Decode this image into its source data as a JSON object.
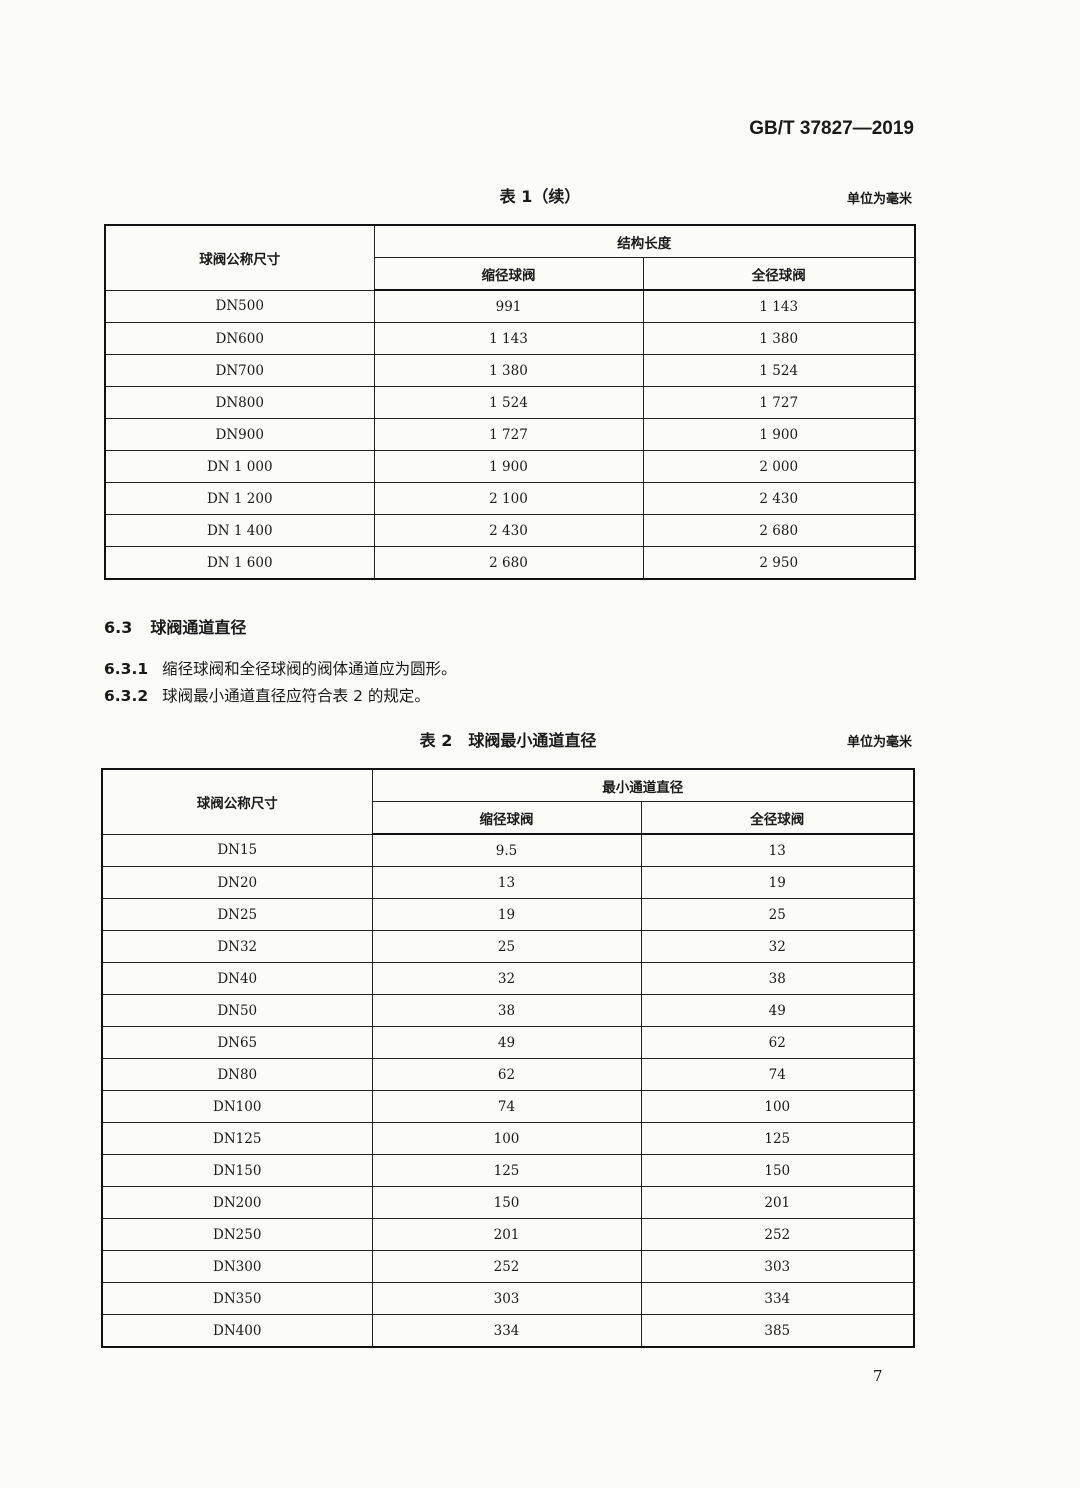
{
  "header": {
    "standard_number": "GB/T 37827—2019"
  },
  "table1": {
    "caption": "表 1（续）",
    "unit": "单位为毫米",
    "col_size": "球阀公称尺寸",
    "group_header": "结构长度",
    "col_reduced": "缩径球阀",
    "col_full": "全径球阀",
    "rows": [
      [
        "DN500",
        "991",
        "1 143"
      ],
      [
        "DN600",
        "1 143",
        "1 380"
      ],
      [
        "DN700",
        "1 380",
        "1 524"
      ],
      [
        "DN800",
        "1 524",
        "1 727"
      ],
      [
        "DN900",
        "1 727",
        "1 900"
      ],
      [
        "DN 1 000",
        "1 900",
        "2 000"
      ],
      [
        "DN 1 200",
        "2 100",
        "2 430"
      ],
      [
        "DN 1 400",
        "2 430",
        "2 680"
      ],
      [
        "DN 1 600",
        "2 680",
        "2 950"
      ]
    ]
  },
  "section": {
    "number": "6.3",
    "title": "球阀通道直径",
    "clauses": [
      {
        "number": "6.3.1",
        "text": "缩径球阀和全径球阀的阀体通道应为圆形。"
      },
      {
        "number": "6.3.2",
        "text": "球阀最小通道直径应符合表 2 的规定。"
      }
    ]
  },
  "table2": {
    "caption": "表 2　球阀最小通道直径",
    "unit": "单位为毫米",
    "col_size": "球阀公称尺寸",
    "group_header": "最小通道直径",
    "col_reduced": "缩径球阀",
    "col_full": "全径球阀",
    "rows": [
      [
        "DN15",
        "9.5",
        "13"
      ],
      [
        "DN20",
        "13",
        "19"
      ],
      [
        "DN25",
        "19",
        "25"
      ],
      [
        "DN32",
        "25",
        "32"
      ],
      [
        "DN40",
        "32",
        "38"
      ],
      [
        "DN50",
        "38",
        "49"
      ],
      [
        "DN65",
        "49",
        "62"
      ],
      [
        "DN80",
        "62",
        "74"
      ],
      [
        "DN100",
        "74",
        "100"
      ],
      [
        "DN125",
        "100",
        "125"
      ],
      [
        "DN150",
        "125",
        "150"
      ],
      [
        "DN200",
        "150",
        "201"
      ],
      [
        "DN250",
        "201",
        "252"
      ],
      [
        "DN300",
        "252",
        "303"
      ],
      [
        "DN350",
        "303",
        "334"
      ],
      [
        "DN400",
        "334",
        "385"
      ]
    ]
  },
  "footer": {
    "page_number": "7"
  }
}
